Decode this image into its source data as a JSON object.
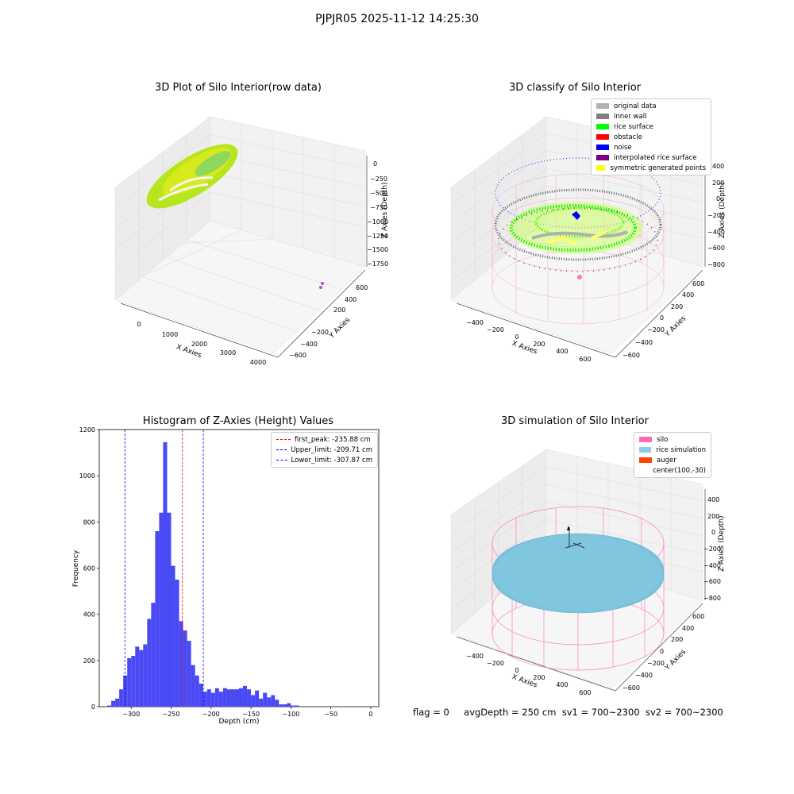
{
  "figure_title": "PJPJR05 2025-11-12 14:25:30",
  "footer": {
    "flag": "flag = 0",
    "avgDepth": "avgDepth = 250 cm",
    "sv1": "sv1 = 700~2300",
    "sv2": "sv2 = 700~2300"
  },
  "panel1": {
    "title": "3D Plot of Silo Interior(row data)",
    "xlabel": "X Axies",
    "ylabel": "Y Axies",
    "zlabel": "Z Axies (Depth)",
    "xticks": [
      "0",
      "1000",
      "2000",
      "3000",
      "4000"
    ],
    "yticks": [
      "600",
      "400",
      "200",
      "−200",
      "−400",
      "−600"
    ],
    "zticks": [
      "0",
      "−250",
      "−500",
      "−750",
      "−1000",
      "−1250",
      "−1500",
      "−1750"
    ]
  },
  "panel2": {
    "title": "3D classify of Silo Interior",
    "xlabel": "X Axies",
    "ylabel": "Y Axies",
    "zlabel": "Z Axies (Depth)",
    "xticks": [
      "−400",
      "−200",
      "0",
      "200",
      "400",
      "600"
    ],
    "yticks": [
      "600",
      "400",
      "200",
      "0",
      "−200",
      "−400",
      "−600"
    ],
    "zticks": [
      "400",
      "200",
      "0",
      "−200",
      "−400",
      "−600",
      "−800"
    ],
    "legend": [
      {
        "label": "original data",
        "color": "#b0b0b0"
      },
      {
        "label": "inner wall",
        "color": "#808080"
      },
      {
        "label": "rice surface",
        "color": "#00ff00"
      },
      {
        "label": "obstacle",
        "color": "#ff0000"
      },
      {
        "label": "noise",
        "color": "#0000ff"
      },
      {
        "label": "interpolated rice surface",
        "color": "#800080"
      },
      {
        "label": "symmetric generated points",
        "color": "#ffff00"
      }
    ]
  },
  "panel4": {
    "title": "3D simulation of Silo Interior",
    "xlabel": "X Axies",
    "ylabel": "Y Axies",
    "zlabel": "Z Axies (Depth)",
    "xticks": [
      "−400",
      "−200",
      "0",
      "200",
      "400",
      "600"
    ],
    "yticks": [
      "600",
      "400",
      "200",
      "0",
      "−200",
      "−400",
      "−600"
    ],
    "zticks": [
      "400",
      "200",
      "0",
      "−200",
      "−400",
      "−600",
      "−800"
    ],
    "legend": [
      {
        "label": "silo",
        "color": "#ff69b4"
      },
      {
        "label": "rice simulation",
        "color": "#87ceeb"
      },
      {
        "label": "auger",
        "color": "#ff4500"
      },
      {
        "label": "center(100,-30)",
        "color": ""
      }
    ]
  },
  "chart_data": [
    {
      "type": "histogram",
      "title": "Histogram of Z-Axies (Height) Values",
      "xlabel": "Depth (cm)",
      "ylabel": "Frequency",
      "xlim": [
        -340,
        10
      ],
      "ylim": [
        0,
        1200
      ],
      "xticks": [
        -300,
        -250,
        -200,
        -150,
        -100,
        -50,
        0
      ],
      "yticks": [
        0,
        200,
        400,
        600,
        800,
        1000,
        1200
      ],
      "bar_color": "#4a4af5",
      "bin_start": -330,
      "bin_width": 5,
      "values": [
        5,
        25,
        35,
        75,
        135,
        210,
        220,
        260,
        245,
        270,
        380,
        450,
        760,
        840,
        1145,
        840,
        610,
        550,
        370,
        330,
        285,
        180,
        135,
        100,
        65,
        75,
        60,
        80,
        65,
        80,
        75,
        75,
        75,
        80,
        90,
        75,
        50,
        70,
        35,
        60,
        40,
        50,
        30,
        10,
        10,
        15,
        5,
        5
      ],
      "series": [
        {
          "name": "first_peak: -235.88 cm",
          "x": -235.88,
          "color": "#ff0000"
        },
        {
          "name": "Upper_limit: -209.71 cm",
          "x": -209.71,
          "color": "#0000ff"
        },
        {
          "name": "Lower_limit: -307.87 cm",
          "x": -307.87,
          "color": "#0000ff"
        }
      ]
    }
  ]
}
